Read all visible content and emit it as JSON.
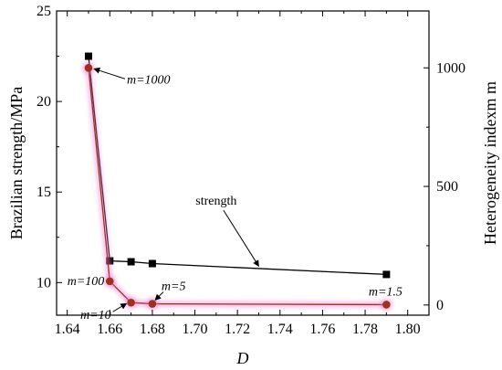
{
  "chart_data": {
    "type": "line",
    "title": "",
    "xlabel": "D",
    "ylabel": "Brazilian strength/MPa",
    "ylabel_right": "Heterogeneity indexm m",
    "xlim": [
      1.635,
      1.81
    ],
    "ylim": [
      8.2,
      25
    ],
    "ylim_right": [
      -43,
      1240
    ],
    "x_ticks": [
      1.64,
      1.66,
      1.68,
      1.7,
      1.72,
      1.74,
      1.76,
      1.78,
      1.8
    ],
    "x_tick_labels": [
      "1.64",
      "1.66",
      "1.68",
      "1.70",
      "1.72",
      "1.74",
      "1.76",
      "1.78",
      "1.80"
    ],
    "y_ticks": [
      10,
      15,
      20,
      25
    ],
    "y_tick_labels": [
      "10",
      "15",
      "20",
      "25"
    ],
    "y_ticks_right": [
      0,
      500,
      1000
    ],
    "y_tick_labels_right": [
      "0",
      "500",
      "1000"
    ],
    "grid": false,
    "series": [
      {
        "name": "strength",
        "axis": "left",
        "color": "#000000",
        "marker": "square",
        "x": [
          1.65,
          1.66,
          1.67,
          1.68,
          1.79
        ],
        "y": [
          22.5,
          11.2,
          11.15,
          11.05,
          10.45
        ]
      },
      {
        "name": "",
        "axis": "right",
        "color": "#a0301e",
        "marker": "circle",
        "x": [
          1.65,
          1.66,
          1.67,
          1.68,
          1.79
        ],
        "y": [
          1000,
          100,
          10,
          5,
          1.5
        ]
      }
    ],
    "annotations": [
      {
        "text": "m=1000",
        "x": 1.65,
        "y": 1000,
        "axis": "right"
      },
      {
        "text": "m=100",
        "x": 1.66,
        "y": 100,
        "axis": "right"
      },
      {
        "text": "m=10",
        "x": 1.67,
        "y": 10,
        "axis": "right"
      },
      {
        "text": "m=5",
        "x": 1.68,
        "y": 5,
        "axis": "right"
      },
      {
        "text": "m=1.5",
        "x": 1.79,
        "y": 1.5,
        "axis": "right"
      },
      {
        "text": "strength",
        "x": 1.73,
        "y": 10.7,
        "axis": "left"
      }
    ],
    "colors": {
      "strength": "#000000",
      "heterogeneity": "#a0301e",
      "glow": "#e87ad2"
    }
  }
}
